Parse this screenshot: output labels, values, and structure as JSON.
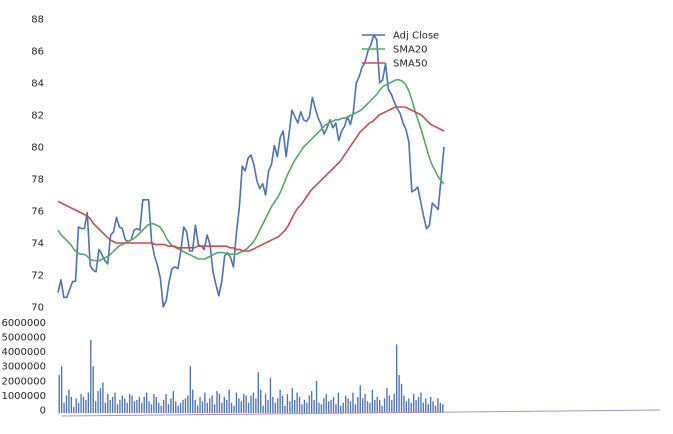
{
  "chart_data": [
    {
      "type": "line",
      "title": "",
      "xlabel": "",
      "ylabel": "",
      "ylim": [
        70,
        88
      ],
      "yticks": [
        70,
        72,
        74,
        76,
        78,
        80,
        82,
        84,
        86,
        88
      ],
      "grid": false,
      "legend_position": "top-center",
      "series": [
        {
          "name": "Adj Close",
          "color": "#4C72B0",
          "values": [
            70.9,
            71.7,
            70.6,
            70.6,
            71.1,
            71.6,
            71.6,
            75.0,
            74.9,
            74.9,
            75.9,
            72.6,
            72.3,
            72.2,
            73.6,
            73.3,
            72.9,
            72.7,
            74.5,
            74.7,
            75.6,
            75.0,
            74.9,
            74.2,
            74.1,
            74.2,
            74.8,
            74.9,
            74.8,
            76.7,
            76.7,
            76.7,
            74.1,
            73.2,
            72.6,
            71.8,
            70.0,
            70.4,
            71.6,
            72.4,
            72.5,
            72.4,
            73.5,
            75.0,
            74.7,
            73.5,
            73.5,
            75.1,
            73.9,
            73.8,
            73.6,
            74.5,
            73.9,
            72.2,
            71.4,
            70.7,
            71.6,
            73.2,
            73.4,
            73.1,
            72.5,
            74.6,
            76.2,
            78.8,
            78.5,
            79.3,
            79.5,
            78.9,
            77.9,
            77.4,
            77.7,
            77.0,
            78.5,
            78.9,
            80.1,
            79.4,
            80.6,
            81.0,
            79.4,
            80.8,
            82.3,
            81.9,
            81.5,
            82.2,
            81.7,
            81.6,
            81.9,
            83.1,
            82.4,
            81.8,
            81.4,
            80.8,
            81.2,
            81.7,
            81.2,
            81.5,
            80.4,
            81.0,
            81.3,
            81.9,
            81.4,
            82.2,
            84.0,
            84.4,
            85.0,
            85.3,
            86.0,
            86.4,
            87.0,
            86.7,
            84.0,
            84.2,
            85.2,
            83.6,
            83.3,
            82.8,
            82.4,
            82.1,
            81.5,
            81.1,
            80.3,
            77.2,
            77.3,
            77.5,
            76.6,
            75.7,
            74.9,
            75.1,
            76.5,
            76.3,
            76.1,
            78.0,
            80.0
          ]
        },
        {
          "name": "SMA20",
          "color": "#55A868",
          "values": [
            74.8,
            74.5,
            74.3,
            74.1,
            73.9,
            73.6,
            73.4,
            73.3,
            73.3,
            73.2,
            73.0,
            72.9,
            72.9,
            72.9,
            73.0,
            73.1,
            73.2,
            73.4,
            73.6,
            73.8,
            73.9,
            74.0,
            74.1,
            74.2,
            74.3,
            74.5,
            74.7,
            74.9,
            75.1,
            75.2,
            75.2,
            75.1,
            75.0,
            74.7,
            74.3,
            74.0,
            73.8,
            73.7,
            73.6,
            73.5,
            73.4,
            73.3,
            73.2,
            73.1,
            73.0,
            73.0,
            73.0,
            73.1,
            73.2,
            73.3,
            73.4,
            73.4,
            73.4,
            73.3,
            73.3,
            73.3,
            73.3,
            73.4,
            73.5,
            73.6,
            73.8,
            74.0,
            74.3,
            74.7,
            75.1,
            75.5,
            75.9,
            76.3,
            76.6,
            76.9,
            77.3,
            77.8,
            78.3,
            78.7,
            79.1,
            79.4,
            79.7,
            80.0,
            80.2,
            80.4,
            80.6,
            80.8,
            81.0,
            81.2,
            81.4,
            81.5,
            81.6,
            81.7,
            81.7,
            81.8,
            81.8,
            81.9,
            82.0,
            82.1,
            82.2,
            82.3,
            82.5,
            82.7,
            82.9,
            83.1,
            83.3,
            83.6,
            83.8,
            83.9,
            84.0,
            84.1,
            84.2,
            84.2,
            84.1,
            83.9,
            83.5,
            82.9,
            82.2,
            81.6,
            81.0,
            80.3,
            79.6,
            79.0,
            78.6,
            78.2,
            77.9,
            77.7
          ]
        },
        {
          "name": "SMA50",
          "color": "#C44E52",
          "values": [
            76.6,
            76.5,
            76.4,
            76.3,
            76.2,
            76.1,
            76.0,
            75.9,
            75.8,
            75.7,
            75.5,
            75.2,
            75.0,
            74.8,
            74.6,
            74.4,
            74.2,
            74.1,
            74.0,
            74.0,
            74.0,
            74.0,
            74.0,
            74.0,
            74.0,
            74.0,
            74.0,
            74.0,
            74.0,
            74.0,
            73.9,
            73.9,
            73.9,
            73.9,
            73.8,
            73.8,
            73.8,
            73.7,
            73.7,
            73.7,
            73.7,
            73.7,
            73.7,
            73.8,
            73.8,
            73.8,
            73.8,
            73.8,
            73.8,
            73.8,
            73.8,
            73.8,
            73.8,
            73.7,
            73.7,
            73.6,
            73.6,
            73.5,
            73.5,
            73.5,
            73.6,
            73.7,
            73.8,
            73.9,
            74.0,
            74.1,
            74.2,
            74.3,
            74.4,
            74.6,
            74.8,
            75.1,
            75.5,
            75.9,
            76.2,
            76.4,
            76.7,
            77.0,
            77.3,
            77.5,
            77.7,
            77.9,
            78.1,
            78.3,
            78.5,
            78.7,
            78.9,
            79.1,
            79.4,
            79.7,
            80.0,
            80.3,
            80.6,
            80.9,
            81.1,
            81.3,
            81.5,
            81.6,
            81.8,
            82.0,
            82.1,
            82.2,
            82.3,
            82.4,
            82.5,
            82.5,
            82.5,
            82.5,
            82.4,
            82.3,
            82.2,
            82.1,
            82.0,
            81.8,
            81.6,
            81.4,
            81.3,
            81.2,
            81.1,
            81.0
          ]
        }
      ]
    },
    {
      "type": "bar",
      "title": "",
      "xlabel": "",
      "ylabel": "",
      "ylim": [
        0,
        5000000
      ],
      "yticks": [
        0,
        1000000,
        2000000,
        3000000,
        4000000,
        5000000,
        6000000
      ],
      "grid": false,
      "series": [
        {
          "name": "Volume",
          "color": "#4C72B0",
          "values": [
            2600000,
            3200000,
            700000,
            1200000,
            1600000,
            1100000,
            400000,
            1000000,
            700000,
            1300000,
            1100000,
            900000,
            1400000,
            5000000,
            3200000,
            800000,
            1500000,
            1700000,
            2100000,
            700000,
            1300000,
            900000,
            1100000,
            1400000,
            600000,
            900000,
            1200000,
            1000000,
            700000,
            1300000,
            1200000,
            800000,
            900000,
            1100000,
            700000,
            1100000,
            1400000,
            800000,
            600000,
            1300000,
            1100000,
            700000,
            500000,
            900000,
            1300000,
            600000,
            1000000,
            1500000,
            800000,
            500000,
            700000,
            900000,
            1000000,
            1200000,
            3200000,
            1600000,
            900000,
            500000,
            1100000,
            800000,
            1400000,
            700000,
            1000000,
            1200000,
            600000,
            1500000,
            1300000,
            700000,
            1100000,
            900000,
            1600000,
            700000,
            500000,
            1400000,
            1000000,
            800000,
            1300000,
            1200000,
            700000,
            1200000,
            1400000,
            1000000,
            2800000,
            1600000,
            500000,
            1300000,
            900000,
            2400000,
            1100000,
            700000,
            1000000,
            1600000,
            1200000,
            500000,
            1300000,
            800000,
            1700000,
            900000,
            1400000,
            1100000,
            600000,
            900000,
            700000,
            1200000,
            1500000,
            900000,
            2200000,
            700000,
            600000,
            1000000,
            1300000,
            800000,
            900000,
            1100000,
            600000,
            1400000,
            500000,
            700000,
            1200000,
            1000000,
            800000,
            1400000,
            600000,
            1100000,
            1900000,
            1000000,
            1300000,
            800000,
            700000,
            1600000,
            900000,
            1100000,
            900000,
            500000,
            1000000,
            1700000,
            1200000,
            900000,
            1300000,
            4700000,
            2600000,
            2000000,
            1200000,
            800000,
            1000000,
            700000,
            1300000,
            900000,
            1100000,
            1400000,
            700000,
            1000000,
            600000,
            1100000,
            800000,
            500000,
            1000000,
            700000,
            600000
          ]
        }
      ]
    }
  ]
}
